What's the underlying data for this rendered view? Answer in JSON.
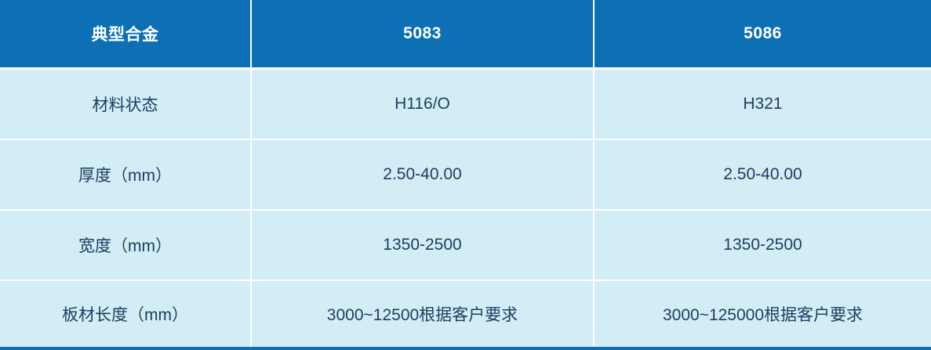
{
  "table": {
    "headers": [
      "典型合金",
      "5083",
      "5086"
    ],
    "rows": [
      {
        "cells": [
          "材料状态",
          "H116/O",
          "H321"
        ]
      },
      {
        "cells": [
          "厚度（mm）",
          "2.50-40.00",
          "2.50-40.00"
        ]
      },
      {
        "cells": [
          "宽度（mm）",
          "1350-2500",
          "1350-2500"
        ]
      },
      {
        "cells": [
          "板材长度（mm）",
          "3000~12500根据客户要求",
          "3000~125000根据客户要求"
        ]
      }
    ]
  },
  "colors": {
    "header_bg": "#0d70b5",
    "header_text": "#ffffff",
    "row_bg": "#d3edf6",
    "body_text": "#1e3c5f",
    "grid_gap": "#ffffff"
  }
}
